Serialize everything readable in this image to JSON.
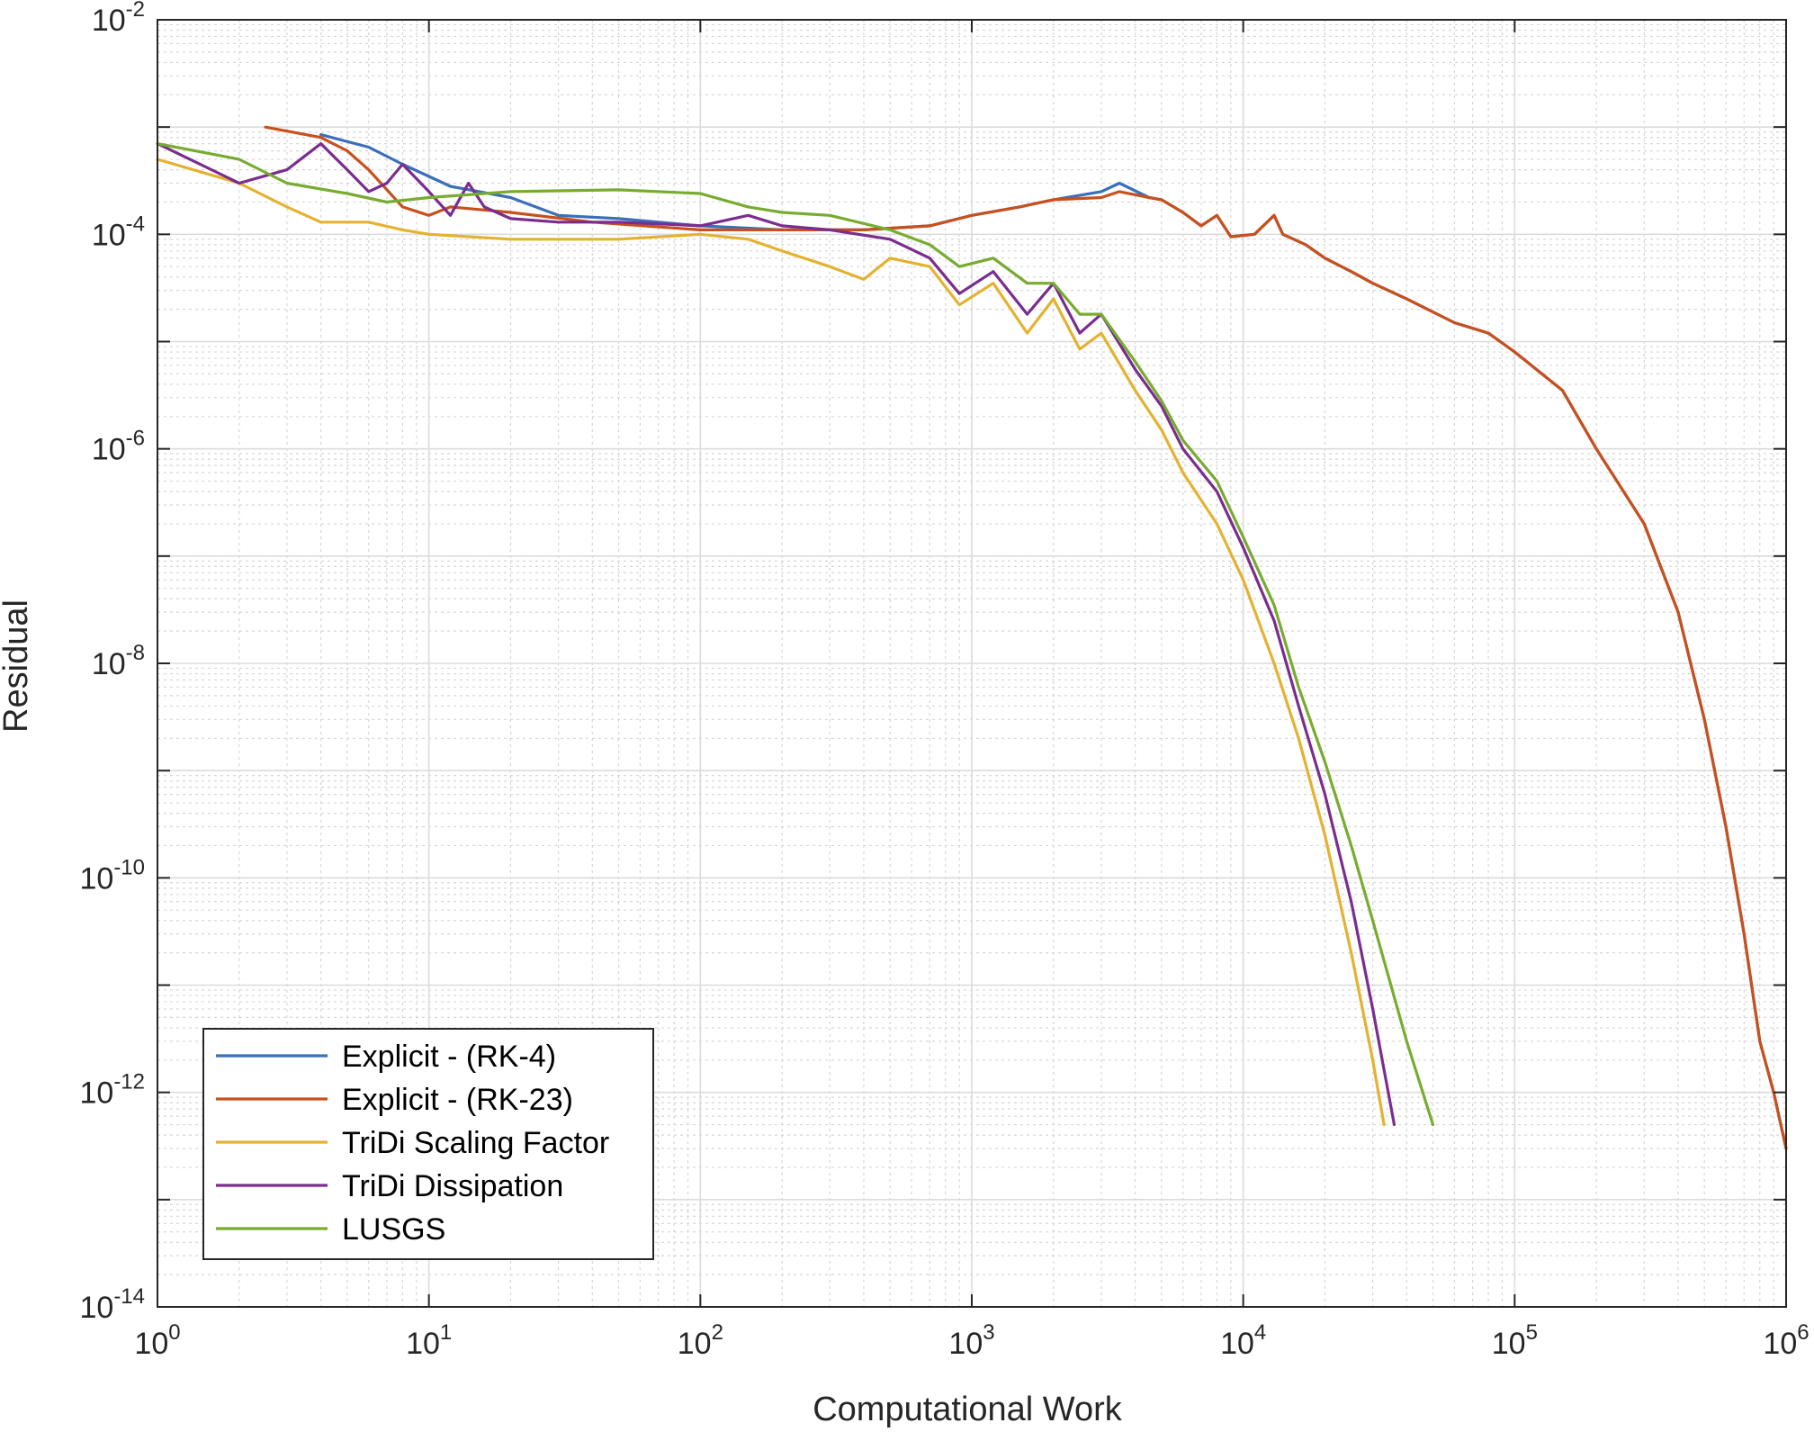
{
  "chart_data": {
    "type": "line",
    "title": "",
    "xlabel": "Computational Work",
    "ylabel": "Residual",
    "xscale": "log",
    "yscale": "log",
    "xlim": [
      1,
      1000000
    ],
    "ylim": [
      1e-14,
      0.01
    ],
    "grid": "major and minor",
    "legend_position": "bottom-left",
    "x_ticks": [
      {
        "base": "10",
        "exp": "0",
        "value": 1
      },
      {
        "base": "10",
        "exp": "1",
        "value": 10
      },
      {
        "base": "10",
        "exp": "2",
        "value": 100
      },
      {
        "base": "10",
        "exp": "3",
        "value": 1000
      },
      {
        "base": "10",
        "exp": "4",
        "value": 10000
      },
      {
        "base": "10",
        "exp": "5",
        "value": 100000
      },
      {
        "base": "10",
        "exp": "6",
        "value": 1000000
      }
    ],
    "y_ticks": [
      {
        "base": "10",
        "exp": "-2",
        "value": 0.01
      },
      {
        "base": "10",
        "exp": "-4",
        "value": 0.0001
      },
      {
        "base": "10",
        "exp": "-6",
        "value": 1e-06
      },
      {
        "base": "10",
        "exp": "-8",
        "value": 1e-08
      },
      {
        "base": "10",
        "exp": "-10",
        "value": 1e-10
      },
      {
        "base": "10",
        "exp": "-12",
        "value": 1e-12
      },
      {
        "base": "10",
        "exp": "-14",
        "value": 1e-14
      }
    ],
    "series": [
      {
        "name": "Explicit - (RK-4)",
        "color": "#3b6fba",
        "points": [
          [
            4,
            0.00085
          ],
          [
            6,
            0.00065
          ],
          [
            8,
            0.00045
          ],
          [
            12,
            0.00028
          ],
          [
            20,
            0.00022
          ],
          [
            30,
            0.00015
          ],
          [
            50,
            0.00014
          ],
          [
            100,
            0.00012
          ],
          [
            200,
            0.00011
          ],
          [
            400,
            0.00011
          ],
          [
            700,
            0.00012
          ],
          [
            1000,
            0.00015
          ],
          [
            1500,
            0.00018
          ],
          [
            2000,
            0.00021
          ],
          [
            3000,
            0.00025
          ],
          [
            3500,
            0.0003
          ],
          [
            4500,
            0.00022
          ],
          [
            5000,
            0.00021
          ],
          [
            6000,
            0.00016
          ],
          [
            7000,
            0.00012
          ],
          [
            8000,
            0.00015
          ],
          [
            9000,
            9.5e-05
          ],
          [
            11000,
            0.0001
          ],
          [
            13000,
            0.00015
          ],
          [
            14000,
            0.0001
          ],
          [
            17000,
            8e-05
          ],
          [
            20000,
            6e-05
          ],
          [
            25000,
            4.5e-05
          ],
          [
            30000,
            3.5e-05
          ],
          [
            40000,
            2.5e-05
          ],
          [
            60000,
            1.5e-05
          ],
          [
            80000,
            1.2e-05
          ],
          [
            100000,
            8e-06
          ],
          [
            150000,
            3.5e-06
          ],
          [
            200000,
            1e-06
          ],
          [
            300000,
            2e-07
          ],
          [
            400000,
            3e-08
          ],
          [
            500000,
            3e-09
          ],
          [
            600000,
            3e-10
          ],
          [
            700000,
            3e-11
          ],
          [
            800000,
            3e-12
          ],
          [
            900000,
            1e-12
          ],
          [
            1000000,
            3e-13
          ]
        ]
      },
      {
        "name": "Explicit - (RK-23)",
        "color": "#c8501c",
        "points": [
          [
            2.5,
            0.001
          ],
          [
            4,
            0.0008
          ],
          [
            5,
            0.0006
          ],
          [
            6,
            0.0004
          ],
          [
            8,
            0.00018
          ],
          [
            10,
            0.00015
          ],
          [
            12,
            0.00018
          ],
          [
            20,
            0.00016
          ],
          [
            40,
            0.00013
          ],
          [
            100,
            0.00011
          ],
          [
            200,
            0.00011
          ],
          [
            400,
            0.00011
          ],
          [
            700,
            0.00012
          ],
          [
            1000,
            0.00015
          ],
          [
            1500,
            0.00018
          ],
          [
            2000,
            0.00021
          ],
          [
            3000,
            0.00022
          ],
          [
            3500,
            0.00025
          ],
          [
            4500,
            0.00022
          ],
          [
            5000,
            0.00021
          ],
          [
            6000,
            0.00016
          ],
          [
            7000,
            0.00012
          ],
          [
            8000,
            0.00015
          ],
          [
            9000,
            9.5e-05
          ],
          [
            11000,
            0.0001
          ],
          [
            13000,
            0.00015
          ],
          [
            14000,
            0.0001
          ],
          [
            17000,
            8e-05
          ],
          [
            20000,
            6e-05
          ],
          [
            25000,
            4.5e-05
          ],
          [
            30000,
            3.5e-05
          ],
          [
            40000,
            2.5e-05
          ],
          [
            60000,
            1.5e-05
          ],
          [
            80000,
            1.2e-05
          ],
          [
            100000,
            8e-06
          ],
          [
            150000,
            3.5e-06
          ],
          [
            200000,
            1e-06
          ],
          [
            300000,
            2e-07
          ],
          [
            400000,
            3e-08
          ],
          [
            500000,
            3e-09
          ],
          [
            600000,
            3e-10
          ],
          [
            700000,
            3e-11
          ],
          [
            800000,
            3e-12
          ],
          [
            900000,
            1e-12
          ],
          [
            1000000,
            3e-13
          ]
        ]
      },
      {
        "name": "TriDi Scaling Factor",
        "color": "#e4b230",
        "points": [
          [
            1,
            0.0005
          ],
          [
            2,
            0.0003
          ],
          [
            3,
            0.00018
          ],
          [
            4,
            0.00013
          ],
          [
            6,
            0.00013
          ],
          [
            8,
            0.00011
          ],
          [
            10,
            0.0001
          ],
          [
            20,
            9e-05
          ],
          [
            50,
            9e-05
          ],
          [
            100,
            0.0001
          ],
          [
            150,
            9e-05
          ],
          [
            200,
            7e-05
          ],
          [
            300,
            5e-05
          ],
          [
            400,
            3.8e-05
          ],
          [
            500,
            6e-05
          ],
          [
            700,
            5e-05
          ],
          [
            900,
            2.2e-05
          ],
          [
            1200,
            3.5e-05
          ],
          [
            1600,
            1.2e-05
          ],
          [
            2000,
            2.5e-05
          ],
          [
            2500,
            8.5e-06
          ],
          [
            3000,
            1.2e-05
          ],
          [
            4000,
            3.5e-06
          ],
          [
            5000,
            1.5e-06
          ],
          [
            6000,
            6e-07
          ],
          [
            8000,
            2e-07
          ],
          [
            10000,
            6e-08
          ],
          [
            13000,
            1e-08
          ],
          [
            16000,
            2e-09
          ],
          [
            20000,
            2.5e-10
          ],
          [
            25000,
            2e-11
          ],
          [
            30000,
            2e-12
          ],
          [
            33000,
            5e-13
          ]
        ]
      },
      {
        "name": "TriDi Dissipation",
        "color": "#7a2d8d",
        "points": [
          [
            1,
            0.0007
          ],
          [
            2,
            0.0003
          ],
          [
            3,
            0.0004
          ],
          [
            4,
            0.0007
          ],
          [
            5,
            0.0004
          ],
          [
            6,
            0.00025
          ],
          [
            7,
            0.0003
          ],
          [
            8,
            0.00045
          ],
          [
            10,
            0.00025
          ],
          [
            12,
            0.00015
          ],
          [
            14,
            0.0003
          ],
          [
            16,
            0.00018
          ],
          [
            20,
            0.00014
          ],
          [
            30,
            0.00013
          ],
          [
            50,
            0.00013
          ],
          [
            100,
            0.00012
          ],
          [
            150,
            0.00015
          ],
          [
            200,
            0.00012
          ],
          [
            300,
            0.00011
          ],
          [
            500,
            9e-05
          ],
          [
            700,
            6e-05
          ],
          [
            900,
            2.8e-05
          ],
          [
            1200,
            4.5e-05
          ],
          [
            1600,
            1.8e-05
          ],
          [
            2000,
            3.5e-05
          ],
          [
            2500,
            1.2e-05
          ],
          [
            3000,
            1.8e-05
          ],
          [
            4000,
            5.5e-06
          ],
          [
            5000,
            2.5e-06
          ],
          [
            6000,
            1e-06
          ],
          [
            8000,
            4e-07
          ],
          [
            10000,
            1.2e-07
          ],
          [
            13000,
            2.5e-08
          ],
          [
            16000,
            4e-09
          ],
          [
            20000,
            6e-10
          ],
          [
            25000,
            6e-11
          ],
          [
            30000,
            6e-12
          ],
          [
            36000,
            5e-13
          ]
        ]
      },
      {
        "name": "LUSGS",
        "color": "#77ac30",
        "points": [
          [
            1,
            0.0007
          ],
          [
            2,
            0.0005
          ],
          [
            3,
            0.0003
          ],
          [
            5,
            0.00024
          ],
          [
            7,
            0.0002
          ],
          [
            10,
            0.00022
          ],
          [
            20,
            0.00025
          ],
          [
            50,
            0.00026
          ],
          [
            100,
            0.00024
          ],
          [
            150,
            0.00018
          ],
          [
            200,
            0.00016
          ],
          [
            300,
            0.00015
          ],
          [
            500,
            0.00011
          ],
          [
            700,
            8e-05
          ],
          [
            900,
            5e-05
          ],
          [
            1200,
            6e-05
          ],
          [
            1600,
            3.5e-05
          ],
          [
            2000,
            3.5e-05
          ],
          [
            2500,
            1.8e-05
          ],
          [
            3000,
            1.8e-05
          ],
          [
            4000,
            6.5e-06
          ],
          [
            5000,
            2.8e-06
          ],
          [
            6000,
            1.2e-06
          ],
          [
            8000,
            5e-07
          ],
          [
            10000,
            1.5e-07
          ],
          [
            13000,
            3.5e-08
          ],
          [
            16000,
            6e-09
          ],
          [
            20000,
            1.2e-09
          ],
          [
            25000,
            2e-10
          ],
          [
            30000,
            4e-11
          ],
          [
            40000,
            3e-12
          ],
          [
            50000,
            5e-13
          ]
        ]
      }
    ]
  }
}
